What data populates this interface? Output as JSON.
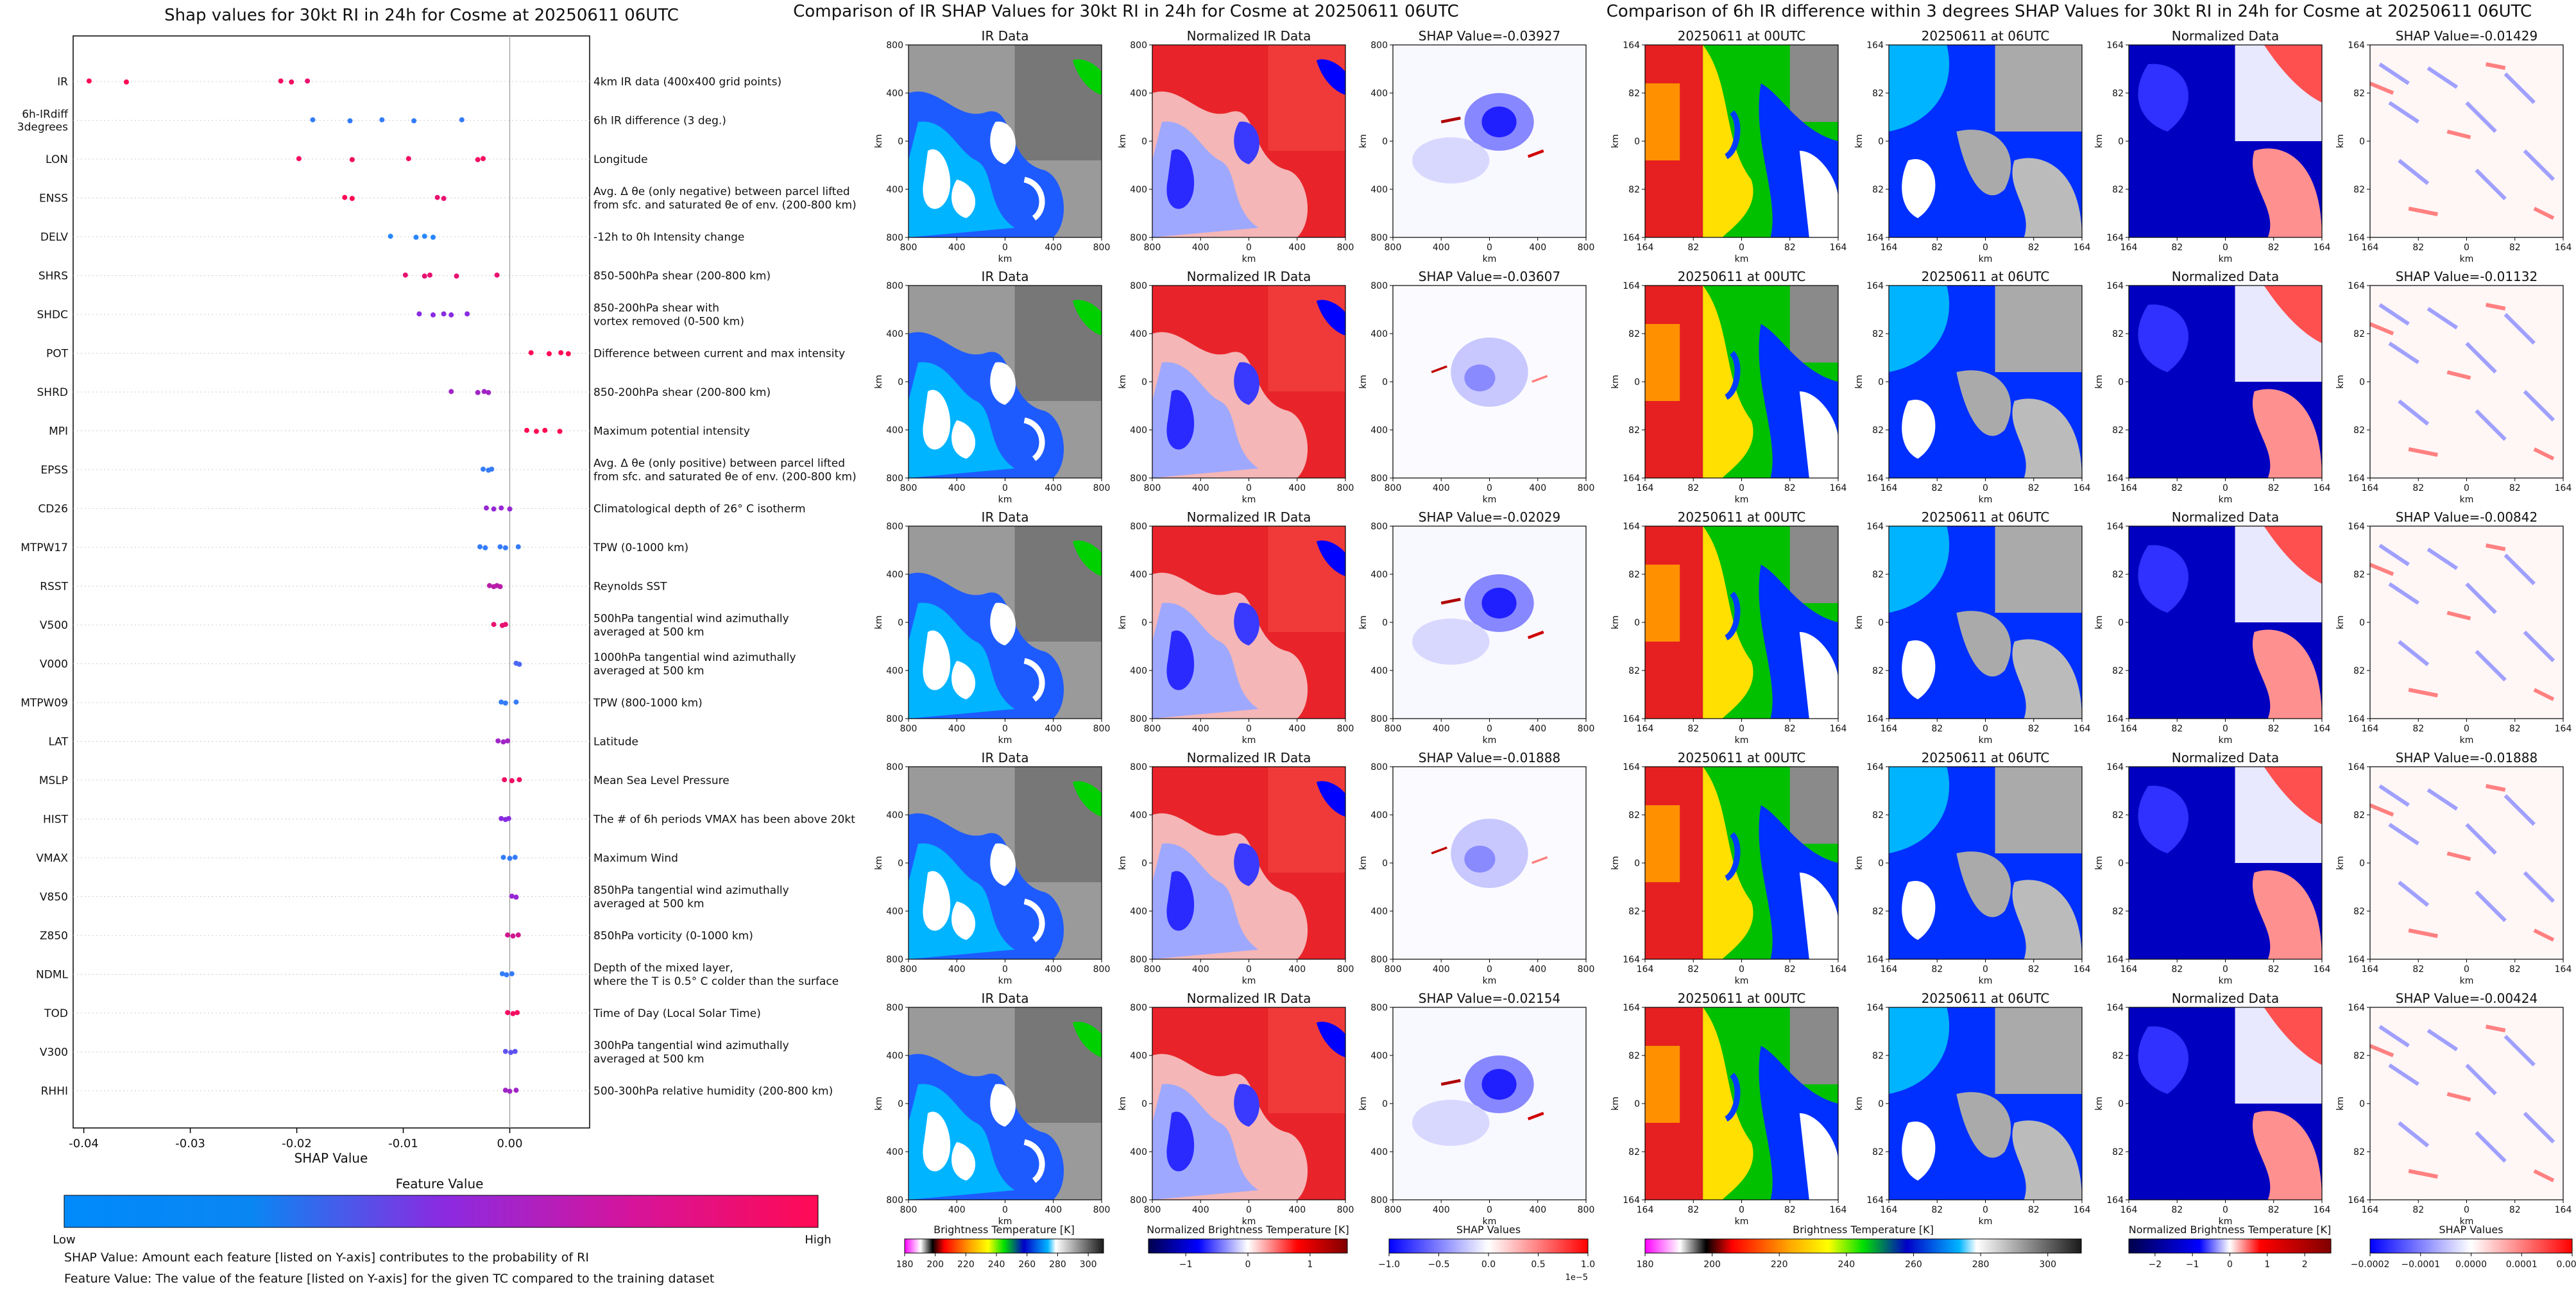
{
  "beeswarm": {
    "title": "Shap values for 30kt RI in 24h for Cosme at 20250611 06UTC",
    "xlabel": "SHAP Value",
    "colorbar_title": "Feature Value",
    "colorbar_low": "Low",
    "colorbar_high": "High",
    "note_shap": "SHAP Value: Amount each feature [listed on Y-axis] contributes to the probability of RI",
    "note_feature": "Feature Value: The value of the feature [listed on Y-axis] for the given TC compared to the training dataset",
    "colors": {
      "low": "#1e90ff",
      "mid": "#8a2be2",
      "high": "#ff0a54"
    }
  },
  "chart_data": [
    {
      "type": "scatter",
      "title": "Shap values for 30kt RI in 24h for Cosme at 20250611 06UTC",
      "xlabel": "SHAP Value",
      "xlim": [
        -0.041,
        0.0075
      ],
      "xticks": [
        "-0.04",
        "-0.03",
        "-0.02",
        "-0.01",
        "0.00"
      ],
      "xtick_values": [
        -0.04,
        -0.03,
        -0.02,
        -0.01,
        0.0
      ],
      "features": [
        {
          "code": "IR",
          "desc": [
            "4km IR data (400x400 grid points)"
          ],
          "points": [
            {
              "v": -0.0395,
              "c": 1
            },
            {
              "v": -0.036,
              "c": 1
            },
            {
              "v": -0.0215,
              "c": 0.95
            },
            {
              "v": -0.0205,
              "c": 0.95
            },
            {
              "v": -0.019,
              "c": 0.9
            }
          ]
        },
        {
          "code": "6h-IRdiff 3degrees",
          "label_lines": [
            "6h-IRdiff",
            "3degrees"
          ],
          "desc": [
            "6h IR difference (3 deg.)"
          ],
          "points": [
            {
              "v": -0.0185,
              "c": 0.1
            },
            {
              "v": -0.015,
              "c": 0.1
            },
            {
              "v": -0.012,
              "c": 0.1
            },
            {
              "v": -0.009,
              "c": 0.1
            },
            {
              "v": -0.0045,
              "c": 0.1
            }
          ]
        },
        {
          "code": "LON",
          "desc": [
            "Longitude"
          ],
          "points": [
            {
              "v": -0.0198,
              "c": 0.95
            },
            {
              "v": -0.0148,
              "c": 0.95
            },
            {
              "v": -0.0095,
              "c": 0.95
            },
            {
              "v": -0.003,
              "c": 0.95
            },
            {
              "v": -0.0025,
              "c": 0.95
            }
          ]
        },
        {
          "code": "ENSS",
          "desc": [
            "Avg. Δ θe (only negative) between parcel lifted",
            "from sfc. and saturated θe of env. (200-800 km)"
          ],
          "points": [
            {
              "v": -0.0155,
              "c": 1
            },
            {
              "v": -0.0148,
              "c": 1
            },
            {
              "v": -0.0068,
              "c": 0.9
            },
            {
              "v": -0.0062,
              "c": 0.9
            }
          ]
        },
        {
          "code": "DELV",
          "desc": [
            "-12h to 0h Intensity change"
          ],
          "points": [
            {
              "v": -0.0112,
              "c": 0.05
            },
            {
              "v": -0.0088,
              "c": 0.05
            },
            {
              "v": -0.008,
              "c": 0.05
            },
            {
              "v": -0.0072,
              "c": 0.05
            }
          ]
        },
        {
          "code": "SHRS",
          "desc": [
            "850-500hPa shear (200-800 km)"
          ],
          "points": [
            {
              "v": -0.0098,
              "c": 0.9
            },
            {
              "v": -0.008,
              "c": 0.9
            },
            {
              "v": -0.0075,
              "c": 0.9
            },
            {
              "v": -0.005,
              "c": 0.9
            },
            {
              "v": -0.0012,
              "c": 0.9
            }
          ]
        },
        {
          "code": "SHDC",
          "desc": [
            "850-200hPa shear with",
            "vortex removed (0-500 km)"
          ],
          "points": [
            {
              "v": -0.0085,
              "c": 0.5
            },
            {
              "v": -0.0072,
              "c": 0.5
            },
            {
              "v": -0.0062,
              "c": 0.5
            },
            {
              "v": -0.0055,
              "c": 0.5
            },
            {
              "v": -0.004,
              "c": 0.5
            }
          ]
        },
        {
          "code": "POT",
          "desc": [
            "Difference between current and max intensity"
          ],
          "points": [
            {
              "v": 0.002,
              "c": 1
            },
            {
              "v": 0.0037,
              "c": 1
            },
            {
              "v": 0.0048,
              "c": 1
            },
            {
              "v": 0.0055,
              "c": 1
            }
          ]
        },
        {
          "code": "SHRD",
          "desc": [
            "850-200hPa shear (200-800 km)"
          ],
          "points": [
            {
              "v": -0.0055,
              "c": 0.6
            },
            {
              "v": -0.003,
              "c": 0.6
            },
            {
              "v": -0.0024,
              "c": 0.6
            },
            {
              "v": -0.002,
              "c": 0.6
            }
          ]
        },
        {
          "code": "MPI",
          "desc": [
            "Maximum potential intensity"
          ],
          "points": [
            {
              "v": 0.0016,
              "c": 1
            },
            {
              "v": 0.0025,
              "c": 1
            },
            {
              "v": 0.0033,
              "c": 1
            },
            {
              "v": 0.0047,
              "c": 1
            }
          ]
        },
        {
          "code": "EPSS",
          "desc": [
            "Avg. Δ θe (only positive) between parcel lifted",
            "from sfc. and saturated θe of env. (200-800 km)"
          ],
          "points": [
            {
              "v": -0.0025,
              "c": 0.1
            },
            {
              "v": -0.002,
              "c": 0.1
            },
            {
              "v": -0.0017,
              "c": 0.1
            }
          ]
        },
        {
          "code": "CD26",
          "desc": [
            "Climatological depth of 26° C isotherm"
          ],
          "points": [
            {
              "v": -0.0022,
              "c": 0.55
            },
            {
              "v": -0.0015,
              "c": 0.55
            },
            {
              "v": -0.0008,
              "c": 0.55
            },
            {
              "v": 0.0,
              "c": 0.55
            }
          ]
        },
        {
          "code": "MTPW17",
          "desc": [
            "TPW (0-1000 km)"
          ],
          "points": [
            {
              "v": -0.0028,
              "c": 0.1
            },
            {
              "v": -0.0023,
              "c": 0.1
            },
            {
              "v": -0.0009,
              "c": 0.1
            },
            {
              "v": -0.0004,
              "c": 0.1
            },
            {
              "v": 0.0008,
              "c": 0.1
            }
          ]
        },
        {
          "code": "RSST",
          "desc": [
            "Reynolds SST"
          ],
          "points": [
            {
              "v": -0.0019,
              "c": 0.7
            },
            {
              "v": -0.0015,
              "c": 0.7
            },
            {
              "v": -0.0012,
              "c": 0.7
            },
            {
              "v": -0.0009,
              "c": 0.7
            }
          ]
        },
        {
          "code": "V500",
          "desc": [
            "500hPa tangential wind azimuthally",
            "averaged at 500 km"
          ],
          "points": [
            {
              "v": -0.0015,
              "c": 0.9
            },
            {
              "v": -0.0007,
              "c": 0.9
            },
            {
              "v": -0.0004,
              "c": 0.9
            }
          ]
        },
        {
          "code": "V000",
          "desc": [
            "1000hPa tangential wind azimuthally",
            "averaged at 500 km"
          ],
          "points": [
            {
              "v": 0.0006,
              "c": 0.2
            },
            {
              "v": 0.0009,
              "c": 0.2
            }
          ]
        },
        {
          "code": "MTPW09",
          "desc": [
            "TPW (800-1000 km)"
          ],
          "points": [
            {
              "v": -0.0008,
              "c": 0.1
            },
            {
              "v": -0.0004,
              "c": 0.1
            },
            {
              "v": 0.0006,
              "c": 0.1
            }
          ]
        },
        {
          "code": "LAT",
          "desc": [
            "Latitude"
          ],
          "points": [
            {
              "v": -0.0011,
              "c": 0.6
            },
            {
              "v": -0.0006,
              "c": 0.6
            },
            {
              "v": -0.0002,
              "c": 0.6
            }
          ]
        },
        {
          "code": "MSLP",
          "desc": [
            "Mean Sea Level Pressure"
          ],
          "points": [
            {
              "v": -0.0005,
              "c": 0.95
            },
            {
              "v": 0.0002,
              "c": 0.95
            },
            {
              "v": 0.0009,
              "c": 0.95
            }
          ]
        },
        {
          "code": "HIST",
          "desc": [
            "The # of 6h periods VMAX has been above 20kt"
          ],
          "points": [
            {
              "v": -0.0008,
              "c": 0.5
            },
            {
              "v": -0.0004,
              "c": 0.5
            },
            {
              "v": -0.0001,
              "c": 0.5
            }
          ]
        },
        {
          "code": "VMAX",
          "desc": [
            "Maximum Wind"
          ],
          "points": [
            {
              "v": -0.0006,
              "c": 0.1
            },
            {
              "v": 0.0,
              "c": 0.1
            },
            {
              "v": 0.0005,
              "c": 0.1
            }
          ]
        },
        {
          "code": "V850",
          "desc": [
            "850hPa tangential wind azimuthally",
            "averaged at 500 km"
          ],
          "points": [
            {
              "v": 0.0002,
              "c": 0.55
            },
            {
              "v": 0.0006,
              "c": 0.55
            }
          ]
        },
        {
          "code": "Z850",
          "desc": [
            "850hPa vorticity (0-1000 km)"
          ],
          "points": [
            {
              "v": -0.0002,
              "c": 0.8
            },
            {
              "v": 0.0003,
              "c": 0.8
            },
            {
              "v": 0.0008,
              "c": 0.8
            }
          ]
        },
        {
          "code": "NDML",
          "desc": [
            "Depth of the mixed layer,",
            "where the T is 0.5° C colder than the surface"
          ],
          "points": [
            {
              "v": -0.0007,
              "c": 0.1
            },
            {
              "v": -0.0003,
              "c": 0.1
            },
            {
              "v": 0.0002,
              "c": 0.1
            }
          ]
        },
        {
          "code": "TOD",
          "desc": [
            "Time of Day (Local Solar Time)"
          ],
          "points": [
            {
              "v": -0.0002,
              "c": 0.95
            },
            {
              "v": 0.0003,
              "c": 0.95
            },
            {
              "v": 0.0007,
              "c": 0.95
            }
          ]
        },
        {
          "code": "V300",
          "desc": [
            "300hPa tangential wind azimuthally",
            "averaged at 500 km"
          ],
          "points": [
            {
              "v": -0.0004,
              "c": 0.3
            },
            {
              "v": 0.0001,
              "c": 0.3
            },
            {
              "v": 0.0005,
              "c": 0.3
            }
          ]
        },
        {
          "code": "RHHI",
          "desc": [
            "500-300hPa relative humidity (200-800 km)"
          ],
          "points": [
            {
              "v": -0.0004,
              "c": 0.6
            },
            {
              "v": 0.0,
              "c": 0.6
            },
            {
              "v": 0.0006,
              "c": 0.6
            }
          ]
        }
      ]
    },
    {
      "type": "heatmap",
      "title": "Comparison of IR SHAP Values for 30kt RI in 24h for Cosme at 20250611 06UTC",
      "columns": [
        "IR Data",
        "Normalized IR Data",
        "SHAP Value"
      ],
      "shap_values": [
        "-0.03927",
        "-0.03607",
        "-0.02029",
        "-0.01888",
        "-0.02154"
      ],
      "axis_label": "km",
      "xticks": [
        "800",
        "400",
        "0",
        "400",
        "800"
      ],
      "yticks": [
        "800",
        "400",
        "0",
        "400",
        "800"
      ],
      "colorbars": [
        {
          "label": "Brightness Temperature [K]",
          "ticks": [
            "180",
            "200",
            "220",
            "240",
            "260",
            "280",
            "300"
          ],
          "range": [
            180,
            310
          ]
        },
        {
          "label": "Normalized Brightness Temperature [K]",
          "ticks": [
            "−1",
            "0",
            "1"
          ],
          "range": [
            -1.6,
            1.6
          ]
        },
        {
          "label": "SHAP Values",
          "ticks": [
            "−1.0",
            "−0.5",
            "0.0",
            "0.5",
            "1.0"
          ],
          "range": [
            -1.0,
            1.0
          ],
          "multiplier": "1e−5"
        }
      ]
    },
    {
      "type": "heatmap",
      "title": "Comparison of 6h IR difference within 3 degrees SHAP Values for 30kt RI in 24h for Cosme at 20250611 06UTC",
      "columns": [
        "20250611 at 00UTC",
        "20250611 at 06UTC",
        "Normalized Data",
        "SHAP Value"
      ],
      "shap_values": [
        "-0.01429",
        "-0.01132",
        "-0.00842",
        "-0.01888",
        "-0.00424"
      ],
      "axis_label": "km",
      "xticks": [
        "164",
        "82",
        "0",
        "82",
        "164"
      ],
      "yticks": [
        "164",
        "82",
        "0",
        "82",
        "164"
      ],
      "colorbars": [
        {
          "label": "Brightness Temperature [K]",
          "ticks": [
            "180",
            "200",
            "220",
            "240",
            "260",
            "280",
            "300"
          ],
          "range": [
            180,
            310
          ]
        },
        {
          "label": "Normalized Brightness Temperature [K]",
          "ticks": [
            "−2",
            "−1",
            "0",
            "1",
            "2"
          ],
          "range": [
            -2.7,
            2.7
          ]
        },
        {
          "label": "SHAP Values",
          "ticks": [
            "−0.0002",
            "−0.0001",
            "0.0000",
            "0.0001",
            "0.0002"
          ],
          "range": [
            -0.0002,
            0.0002
          ]
        }
      ]
    }
  ]
}
